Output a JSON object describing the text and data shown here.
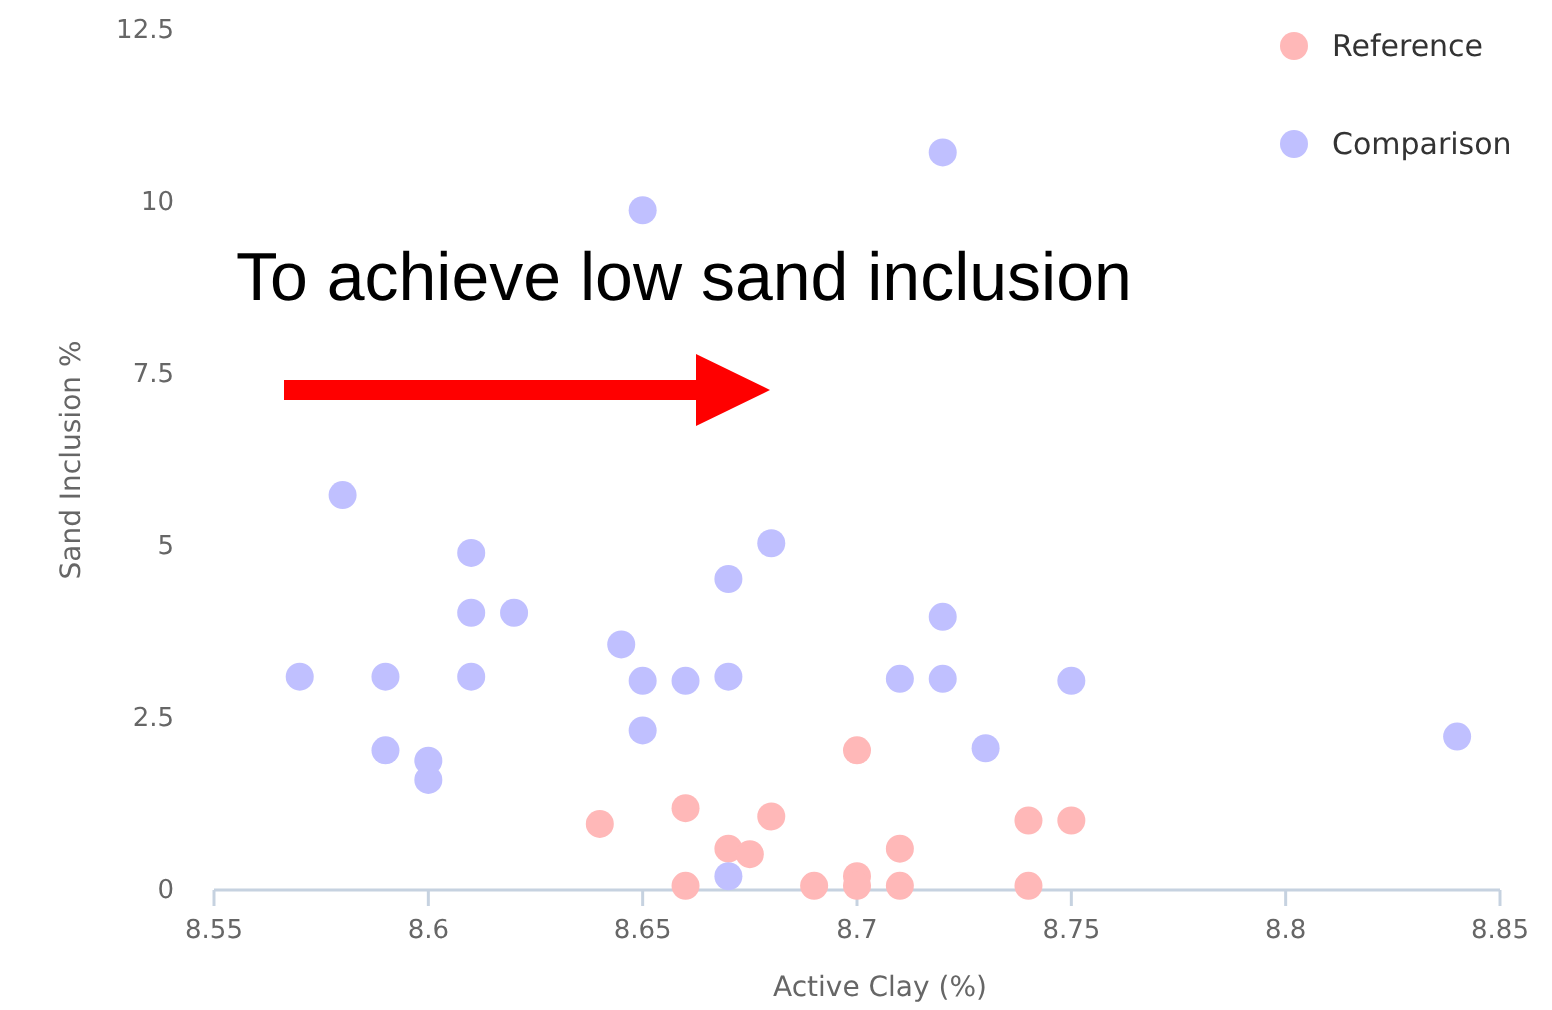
{
  "chart_data": {
    "type": "scatter",
    "xlabel": "Active Clay (%)",
    "ylabel": "Sand Inclusion %",
    "annotations": [
      "To achieve low sand inclusion"
    ],
    "xlim": [
      8.55,
      8.85
    ],
    "xticks": [
      8.55,
      8.6,
      8.65,
      8.7,
      8.75,
      8.8,
      8.85
    ],
    "ylim": [
      0,
      12.5
    ],
    "yticks": [
      0,
      2.5,
      5,
      7.5,
      10,
      12.5
    ],
    "grid": false,
    "legend": "top right",
    "marker": "circle",
    "series": [
      {
        "name": "Reference",
        "color": "#ffb8b8",
        "x": [
          8.64,
          8.66,
          8.66,
          8.67,
          8.675,
          8.68,
          8.69,
          8.7,
          8.7,
          8.7,
          8.71,
          8.71,
          8.74,
          8.75,
          8.74
        ],
        "values": [
          0.96,
          1.19,
          0.06,
          0.6,
          0.52,
          1.07,
          0.06,
          2.03,
          0.2,
          0.06,
          0.6,
          0.06,
          1.01,
          1.01,
          0.06
        ]
      },
      {
        "name": "Comparison",
        "color": "#c0c0ff",
        "x": [
          8.57,
          8.58,
          8.59,
          8.59,
          8.6,
          8.6,
          8.61,
          8.61,
          8.62,
          8.61,
          8.645,
          8.65,
          8.65,
          8.66,
          8.67,
          8.67,
          8.68,
          8.67,
          8.65,
          8.72,
          8.71,
          8.72,
          8.72,
          8.73,
          8.75,
          8.84
        ],
        "values": [
          3.1,
          5.74,
          3.1,
          2.03,
          1.88,
          1.6,
          4.9,
          4.03,
          4.03,
          3.1,
          3.57,
          3.04,
          2.32,
          3.04,
          3.1,
          4.52,
          5.04,
          0.2,
          9.88,
          10.72,
          3.07,
          3.97,
          3.07,
          2.06,
          3.04,
          2.23
        ]
      }
    ]
  }
}
